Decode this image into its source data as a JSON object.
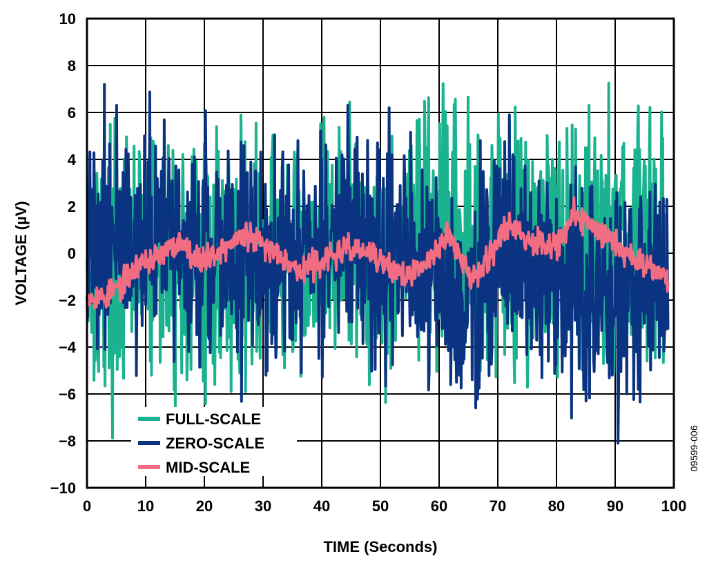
{
  "chart_data": {
    "type": "line",
    "title": "",
    "xlabel": "TIME (Seconds)",
    "ylabel": "VOLTAGE (µV)",
    "xlim": [
      0,
      100
    ],
    "ylim": [
      -10,
      10
    ],
    "x_ticks": [
      0,
      10,
      20,
      30,
      40,
      50,
      60,
      70,
      80,
      90,
      100
    ],
    "y_ticks": [
      10,
      8,
      6,
      4,
      2,
      0,
      -2,
      -4,
      -6,
      -8,
      -10
    ],
    "x_tick_labels": [
      "0",
      "10",
      "20",
      "30",
      "40",
      "50",
      "60",
      "70",
      "80",
      "90",
      "100"
    ],
    "y_tick_labels": [
      "10",
      "8",
      "6",
      "4",
      "2",
      "0",
      "−2",
      "−4",
      "−6",
      "−8",
      "−10"
    ],
    "grid": true,
    "legend_position": "bottom-left",
    "figure_id": "09599-006",
    "series": [
      {
        "name": "FULL-SCALE",
        "color": "#1bb38f",
        "x": [
          0,
          5,
          10,
          15,
          20,
          25,
          30,
          35,
          40,
          45,
          50,
          55,
          60,
          65,
          70,
          75,
          80,
          85,
          90,
          95,
          99
        ],
        "y": [
          -0.5,
          -0.8,
          0.3,
          -0.2,
          -0.5,
          0.2,
          -0.3,
          -0.6,
          0.5,
          0.4,
          -0.3,
          1.0,
          0.3,
          0.6,
          0.8,
          0.5,
          1.2,
          0.8,
          0.6,
          1.0,
          0.0
        ],
        "spread": 2.6,
        "spikes": [
          [
            4,
            5.5
          ],
          [
            11,
            4.9
          ],
          [
            21,
            2.4
          ],
          [
            58,
            4.5
          ],
          [
            72,
            5.6
          ],
          [
            85.5,
            6.3
          ],
          [
            82,
            -3.2
          ],
          [
            11,
            -5.2
          ],
          [
            17,
            -5.4
          ],
          [
            26,
            -5.1
          ],
          [
            35,
            -4.2
          ],
          [
            60,
            -2.5
          ],
          [
            88,
            -4.7
          ],
          [
            96,
            -4.8
          ]
        ]
      },
      {
        "name": "ZERO-SCALE",
        "color": "#0a3382",
        "x": [
          0,
          5,
          10,
          15,
          20,
          25,
          30,
          35,
          40,
          45,
          50,
          55,
          60,
          65,
          70,
          75,
          80,
          85,
          90,
          95,
          99
        ],
        "y": [
          0.8,
          0.6,
          0.5,
          0.3,
          0.2,
          0.0,
          -0.1,
          0.0,
          0.2,
          0.4,
          0.0,
          -0.3,
          -1.3,
          -1.8,
          0.3,
          -0.5,
          -1.3,
          -2.0,
          -1.5,
          -1.2,
          -1.5
        ],
        "spread": 2.3,
        "spikes": [
          [
            3,
            7.2
          ],
          [
            5,
            6.3
          ],
          [
            44.5,
            6.3
          ],
          [
            51.5,
            6.2
          ],
          [
            72,
            5.9
          ],
          [
            62,
            -5.6
          ],
          [
            63.5,
            -5.2
          ],
          [
            77.5,
            -5.3
          ],
          [
            85,
            -6.3
          ],
          [
            89.5,
            -5.2
          ],
          [
            90.5,
            -8.1
          ],
          [
            92,
            -6.0
          ],
          [
            94,
            -5.8
          ],
          [
            30.5,
            -5.2
          ]
        ]
      },
      {
        "name": "MID-SCALE",
        "color": "#f26d82",
        "x": [
          0,
          3,
          6,
          9,
          12,
          16,
          19,
          22,
          27,
          30,
          33,
          36,
          40,
          45,
          48,
          52,
          55,
          58,
          61.5,
          64,
          66,
          70,
          72,
          75,
          78,
          80,
          83,
          86,
          90,
          93,
          96,
          99
        ],
        "y": [
          -1.8,
          -1.9,
          -1.3,
          -0.4,
          -0.2,
          0.5,
          -0.3,
          0.0,
          0.8,
          0.3,
          0.0,
          -0.8,
          -0.3,
          0.2,
          0.0,
          -0.7,
          -1.0,
          -0.4,
          0.9,
          -0.5,
          -1.0,
          0.5,
          1.3,
          0.6,
          0.5,
          0.3,
          1.6,
          1.2,
          0.5,
          -0.2,
          -0.5,
          -1.1
        ],
        "spread": 0.28,
        "spikes": []
      }
    ]
  }
}
